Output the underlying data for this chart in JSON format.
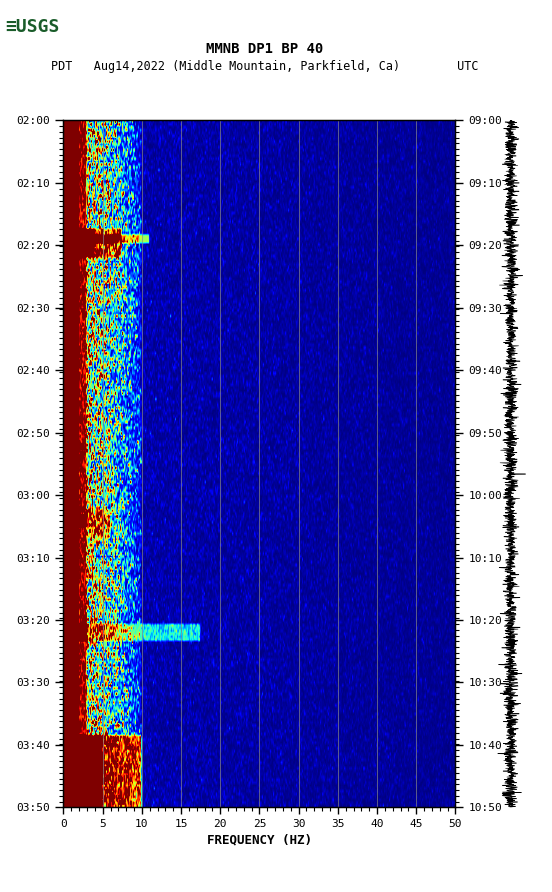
{
  "title_line1": "MMNB DP1 BP 40",
  "title_line2": "PDT   Aug14,2022 (Middle Mountain, Parkfield, Ca)        UTC",
  "xlabel": "FREQUENCY (HZ)",
  "left_times": [
    "02:00",
    "02:10",
    "02:20",
    "02:30",
    "02:40",
    "02:50",
    "03:00",
    "03:10",
    "03:20",
    "03:30",
    "03:40",
    "03:50"
  ],
  "right_times": [
    "09:00",
    "09:10",
    "09:20",
    "09:30",
    "09:40",
    "09:50",
    "10:00",
    "10:10",
    "10:20",
    "10:30",
    "10:40",
    "10:50"
  ],
  "freq_min": 0,
  "freq_max": 50,
  "freq_ticks": [
    0,
    5,
    10,
    15,
    20,
    25,
    30,
    35,
    40,
    45,
    50
  ],
  "freq_gridlines": [
    5,
    10,
    15,
    20,
    25,
    30,
    35,
    40,
    45
  ],
  "n_time_rows": 240,
  "n_freq_cols": 500,
  "background_color": "#ffffff",
  "waveform_color": "#000000",
  "usgs_color": "#1a5c2a"
}
